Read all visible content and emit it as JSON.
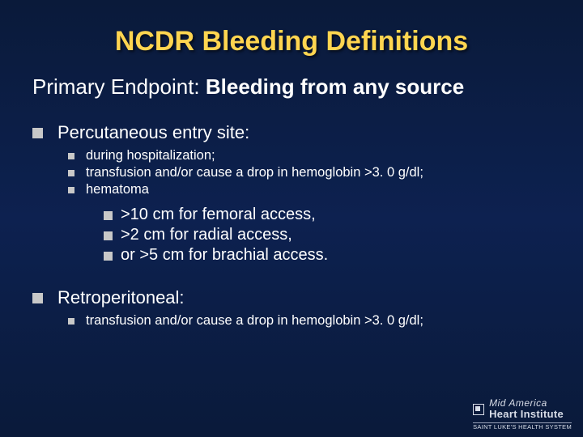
{
  "colors": {
    "background_top": "#0a1a3a",
    "background_mid": "#0d2150",
    "title_color": "#ffd550",
    "text_color": "#ffffff",
    "bullet_color": "#c8c8c8",
    "logo_color": "#d8dde8"
  },
  "title": "NCDR Bleeding Definitions",
  "subtitle_lead": "Primary Endpoint: ",
  "subtitle_bold": "Bleeding from any source",
  "sections": [
    {
      "label": "Percutaneous entry site:",
      "sub": [
        "during hospitalization;",
        "transfusion and/or cause a drop in hemoglobin >3. 0 g/dl;",
        "hematoma"
      ],
      "subsub": [
        ">10 cm for femoral access,",
        ">2 cm for radial access,",
        "or >5 cm for brachial access."
      ]
    },
    {
      "label": "Retroperitoneal:",
      "sub": [
        "transfusion and/or cause a drop in hemoglobin >3. 0 g/dl;"
      ],
      "subsub": []
    }
  ],
  "logo": {
    "line1": "Mid America",
    "line2": "Heart Institute",
    "line3": "SAINT LUKE'S HEALTH SYSTEM"
  },
  "typography": {
    "title_fontsize": 34,
    "subtitle_fontsize": 26,
    "l1_fontsize": 22,
    "l2_fontsize": 16.5,
    "l3_fontsize": 20
  }
}
